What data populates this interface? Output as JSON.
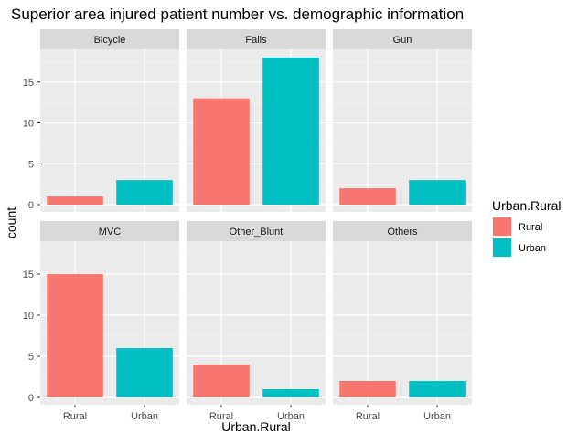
{
  "chart_data": {
    "type": "bar",
    "title": "Superior area injured patient number vs. demographic information",
    "xlabel": "Urban.Rural",
    "ylabel": "count",
    "categories": [
      "Rural",
      "Urban"
    ],
    "ylim": [
      0,
      19
    ],
    "yticks": [
      0,
      5,
      10,
      15
    ],
    "grid": true,
    "facets": [
      {
        "name": "Bicycle",
        "values": [
          1,
          3
        ]
      },
      {
        "name": "Falls",
        "values": [
          13,
          18
        ]
      },
      {
        "name": "Gun",
        "values": [
          2,
          3
        ]
      },
      {
        "name": "MVC",
        "values": [
          15,
          6
        ]
      },
      {
        "name": "Other_Blunt",
        "values": [
          4,
          1
        ]
      },
      {
        "name": "Others",
        "values": [
          2,
          2
        ]
      }
    ],
    "legend": {
      "title": "Urban.Rural",
      "position": "right",
      "entries": [
        {
          "label": "Rural",
          "color": "#F8766D"
        },
        {
          "label": "Urban",
          "color": "#00BFC4"
        }
      ]
    },
    "colors": {
      "Rural": "#F8766D",
      "Urban": "#00BFC4"
    }
  }
}
